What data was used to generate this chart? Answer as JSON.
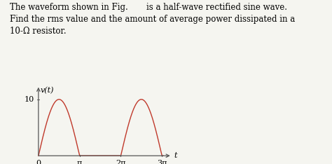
{
  "title_line1": "The waveform shown in Fig.       is a half-wave rectified sine wave.",
  "title_line2": "Find the rms value and the amount of average power dissipated in a",
  "title_line3": "10-Ω resistor.",
  "amplitude": 10,
  "ylabel": "v(t)",
  "xlabel": "t",
  "x_tick_labels": [
    "0",
    "π",
    "2π",
    "3π"
  ],
  "x_tick_positions": [
    0,
    3.14159,
    6.28318,
    9.42478
  ],
  "ytick_val": 10,
  "x_max": 10.2,
  "y_min": -0.3,
  "y_max": 12.5,
  "wave_color": "#c0392b",
  "axis_color": "#555555",
  "text_color": "#000000",
  "background_color": "#f5f5f0",
  "font_size_text": 8.5,
  "font_size_label": 8,
  "font_size_tick": 8
}
